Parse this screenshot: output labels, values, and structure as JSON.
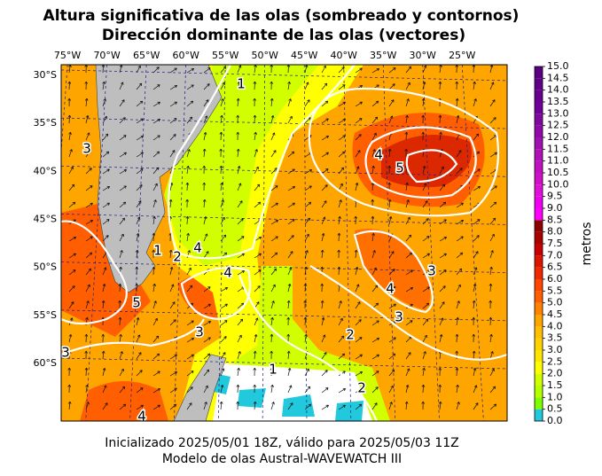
{
  "title": "Altura significativa de las olas (sombreado y contornos)",
  "subtitle": "Dirección dominante de las olas (vectores)",
  "map_data": {
    "type": "map",
    "xlim": [
      -75.8,
      -19.3
    ],
    "ylim": [
      -66,
      -28.9
    ],
    "lon_ticks": [
      {
        "value": -75,
        "label": "75°W"
      },
      {
        "value": -70,
        "label": "70°W"
      },
      {
        "value": -65,
        "label": "65°W"
      },
      {
        "value": -60,
        "label": "60°W"
      },
      {
        "value": -55,
        "label": "55°W"
      },
      {
        "value": -50,
        "label": "50°W"
      },
      {
        "value": -45,
        "label": "45°W"
      },
      {
        "value": -40,
        "label": "40°W"
      },
      {
        "value": -35,
        "label": "35°W"
      },
      {
        "value": -30,
        "label": "30°W"
      },
      {
        "value": -25,
        "label": "25°W"
      }
    ],
    "lat_ticks": [
      {
        "value": -30,
        "label": "30°S"
      },
      {
        "value": -35,
        "label": "35°S"
      },
      {
        "value": -40,
        "label": "40°S"
      },
      {
        "value": -45,
        "label": "45°S"
      },
      {
        "value": -50,
        "label": "50°S"
      },
      {
        "value": -55,
        "label": "55°S"
      },
      {
        "value": -60,
        "label": "60°S"
      }
    ],
    "contour_levels": [
      1,
      2,
      3,
      4,
      5
    ],
    "colorbar": {
      "label": "metros",
      "lim": [
        0,
        15
      ],
      "ticks": [
        {
          "value": 0,
          "label": "0.0"
        },
        {
          "value": 0.5,
          "label": "0.5"
        },
        {
          "value": 1,
          "label": "1.0"
        },
        {
          "value": 1.5,
          "label": "1.5"
        },
        {
          "value": 2,
          "label": "2.0"
        },
        {
          "value": 2.5,
          "label": "2.5"
        },
        {
          "value": 3,
          "label": "3.0"
        },
        {
          "value": 3.5,
          "label": "3.5"
        },
        {
          "value": 4,
          "label": "4.0"
        },
        {
          "value": 4.5,
          "label": "4.5"
        },
        {
          "value": 5,
          "label": "5.0"
        },
        {
          "value": 5.5,
          "label": "5.5"
        },
        {
          "value": 6,
          "label": "6.0"
        },
        {
          "value": 6.5,
          "label": "6.5"
        },
        {
          "value": 7,
          "label": "7.0"
        },
        {
          "value": 7.5,
          "label": "7.5"
        },
        {
          "value": 8,
          "label": "8.0"
        },
        {
          "value": 8.5,
          "label": "8.5"
        },
        {
          "value": 9,
          "label": "9.0"
        },
        {
          "value": 9.5,
          "label": "9.5"
        },
        {
          "value": 10,
          "label": "10.0"
        },
        {
          "value": 10.5,
          "label": "10.5"
        },
        {
          "value": 11,
          "label": "11.0"
        },
        {
          "value": 11.5,
          "label": "11.5"
        },
        {
          "value": 12,
          "label": "12.0"
        },
        {
          "value": 12.5,
          "label": "12.5"
        },
        {
          "value": 13,
          "label": "13.0"
        },
        {
          "value": 13.5,
          "label": "13.5"
        },
        {
          "value": 14,
          "label": "14.0"
        },
        {
          "value": 14.5,
          "label": "14.5"
        },
        {
          "value": 15,
          "label": "15.0"
        }
      ],
      "colors": [
        "#22c8dc",
        "#7dff00",
        "#b4ff00",
        "#d2ff00",
        "#ffff00",
        "#ffe600",
        "#ffd200",
        "#ffbe00",
        "#ffa500",
        "#ff8200",
        "#ff5f00",
        "#ff4600",
        "#f02800",
        "#dc1400",
        "#c80000",
        "#aa0000",
        "#8c0000",
        "#ff00ff",
        "#f000f0",
        "#e010d8",
        "#d010c8",
        "#c010c0",
        "#b010b8",
        "#a010b0",
        "#9008a8",
        "#8008a0",
        "#700098",
        "#680090",
        "#600088",
        "#580080"
      ]
    }
  },
  "footer": [
    "Inicializado 2025/05/01 18Z, válido para 2025/05/03 11Z",
    "Modelo de olas Austral-WAVEWATCH III"
  ]
}
